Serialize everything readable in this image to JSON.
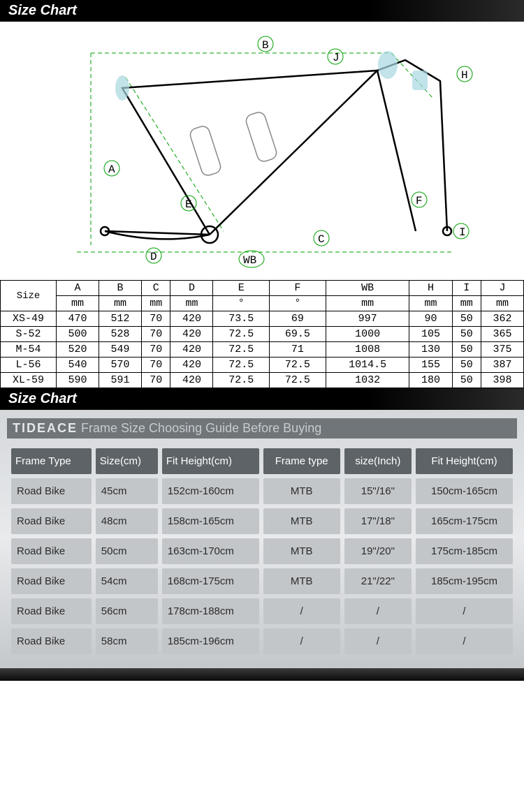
{
  "header1": "Size Chart",
  "header2": "Size Chart",
  "diagram": {
    "labels": [
      "A",
      "B",
      "C",
      "D",
      "E",
      "F",
      "WB",
      "H",
      "I",
      "J"
    ],
    "outline_color": "#00a000",
    "frame_color": "#000000",
    "accent_color": "#a8d8e0"
  },
  "table1": {
    "sizeLabel": "Size",
    "columns": [
      "A",
      "B",
      "C",
      "D",
      "E",
      "F",
      "WB",
      "H",
      "I",
      "J"
    ],
    "units": [
      "mm",
      "mm",
      "mm",
      "mm",
      "°",
      "°",
      "mm",
      "mm",
      "mm",
      "mm"
    ],
    "rows": [
      {
        "size": "XS-49",
        "v": [
          "470",
          "512",
          "70",
          "420",
          "73.5",
          "69",
          "997",
          "90",
          "50",
          "362"
        ]
      },
      {
        "size": "S-52",
        "v": [
          "500",
          "528",
          "70",
          "420",
          "72.5",
          "69.5",
          "1000",
          "105",
          "50",
          "365"
        ]
      },
      {
        "size": "M-54",
        "v": [
          "520",
          "549",
          "70",
          "420",
          "72.5",
          "71",
          "1008",
          "130",
          "50",
          "375"
        ]
      },
      {
        "size": "L-56",
        "v": [
          "540",
          "570",
          "70",
          "420",
          "72.5",
          "72.5",
          "1014.5",
          "155",
          "50",
          "387"
        ]
      },
      {
        "size": "XL-59",
        "v": [
          "590",
          "591",
          "70",
          "420",
          "72.5",
          "72.5",
          "1032",
          "180",
          "50",
          "398"
        ]
      }
    ]
  },
  "guide": {
    "brand": "TIDEACE",
    "subtitle": "Frame  Size Choosing Guide Before Buying",
    "headers": [
      "Frame  Type",
      "Size(cm)",
      "Fit Height(cm)",
      "Frame type",
      "size(Inch)",
      "Fit Height(cm)"
    ],
    "rows": [
      [
        "Road Bike",
        "45cm",
        "152cm-160cm",
        "MTB",
        "15\"/16\"",
        "150cm-165cm"
      ],
      [
        "Road Bike",
        "48cm",
        "158cm-165cm",
        "MTB",
        "17\"/18\"",
        "165cm-175cm"
      ],
      [
        "Road Bike",
        "50cm",
        "163cm-170cm",
        "MTB",
        "19\"/20\"",
        "175cm-185cm"
      ],
      [
        "Road Bike",
        "54cm",
        "168cm-175cm",
        "MTB",
        "21\"/22\"",
        "185cm-195cm"
      ],
      [
        "Road Bike",
        "56cm",
        "178cm-188cm",
        "/",
        "/",
        "/"
      ],
      [
        "Road Bike",
        "58cm",
        "185cm-196cm",
        "/",
        "/",
        "/"
      ]
    ]
  }
}
